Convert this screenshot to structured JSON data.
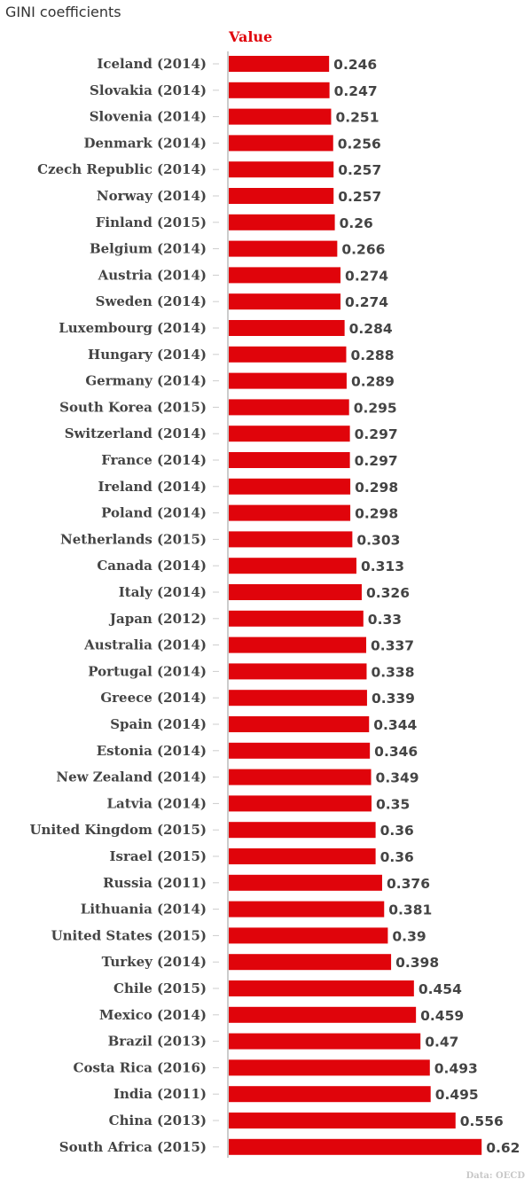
{
  "chart_data": {
    "type": "bar",
    "orientation": "horizontal",
    "title": "GINI coefficients",
    "series_name": "Value",
    "source": "Data: OECD",
    "color": "#e0040b",
    "xlim": [
      0,
      0.65
    ],
    "categories": [
      "Iceland (2014)",
      "Slovakia (2014)",
      "Slovenia (2014)",
      "Denmark (2014)",
      "Czech Republic (2014)",
      "Norway (2014)",
      "Finland (2015)",
      "Belgium (2014)",
      "Austria (2014)",
      "Sweden (2014)",
      "Luxembourg (2014)",
      "Hungary (2014)",
      "Germany (2014)",
      "South Korea (2015)",
      "Switzerland (2014)",
      "France (2014)",
      "Ireland (2014)",
      "Poland (2014)",
      "Netherlands (2015)",
      "Canada (2014)",
      "Italy (2014)",
      "Japan (2012)",
      "Australia (2014)",
      "Portugal (2014)",
      "Greece (2014)",
      "Spain (2014)",
      "Estonia (2014)",
      "New Zealand (2014)",
      "Latvia (2014)",
      "United Kingdom (2015)",
      "Israel (2015)",
      "Russia (2011)",
      "Lithuania (2014)",
      "United States (2015)",
      "Turkey (2014)",
      "Chile (2015)",
      "Mexico (2014)",
      "Brazil (2013)",
      "Costa Rica (2016)",
      "India (2011)",
      "China (2013)",
      "South Africa (2015)"
    ],
    "values": [
      0.246,
      0.247,
      0.251,
      0.256,
      0.257,
      0.257,
      0.26,
      0.266,
      0.274,
      0.274,
      0.284,
      0.288,
      0.289,
      0.295,
      0.297,
      0.297,
      0.298,
      0.298,
      0.303,
      0.313,
      0.326,
      0.33,
      0.337,
      0.338,
      0.339,
      0.344,
      0.346,
      0.349,
      0.35,
      0.36,
      0.36,
      0.376,
      0.381,
      0.39,
      0.398,
      0.454,
      0.459,
      0.47,
      0.493,
      0.495,
      0.556,
      0.62
    ]
  }
}
